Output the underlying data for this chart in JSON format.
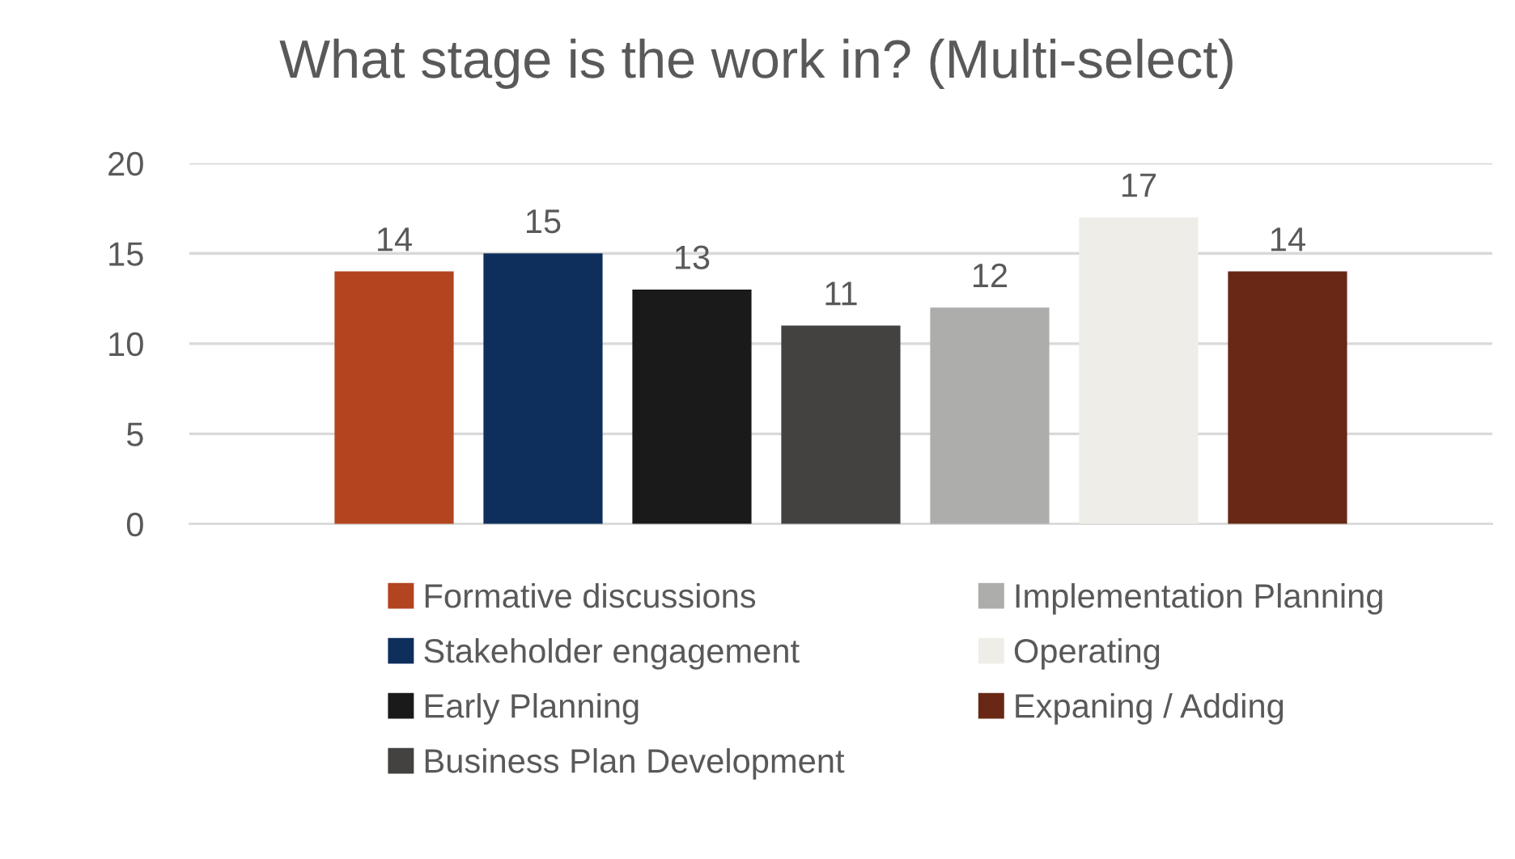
{
  "chart_data": {
    "type": "bar",
    "title": "What stage is the work in? (Multi-select)",
    "categories": [
      null
    ],
    "series": [
      {
        "name": "Formative discussions",
        "color": "#b2441f",
        "values": [
          14
        ]
      },
      {
        "name": "Stakeholder engagement",
        "color": "#0e2f5c",
        "values": [
          15
        ]
      },
      {
        "name": "Early Planning",
        "color": "#1a1a1a",
        "values": [
          13
        ]
      },
      {
        "name": "Business Plan Development",
        "color": "#434240",
        "values": [
          11
        ]
      },
      {
        "name": "Implementation Planning",
        "color": "#adadab",
        "values": [
          12
        ]
      },
      {
        "name": "Operating",
        "color": "#efede8",
        "values": [
          17
        ]
      },
      {
        "name": "Expaning / Adding",
        "color": "#682815",
        "values": [
          14
        ]
      }
    ],
    "ylim": [
      0,
      20
    ],
    "yticks": [
      0,
      5,
      10,
      15,
      20
    ],
    "grid": "y",
    "legend": "bottom",
    "data_labels": true
  }
}
